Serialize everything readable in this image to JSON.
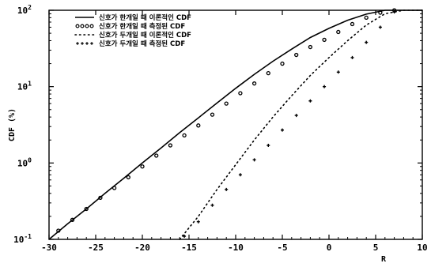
{
  "chart_data": {
    "type": "line",
    "title": "",
    "xlabel": "R",
    "ylabel": "CDF (%)",
    "xlim": [
      -30,
      10
    ],
    "ylim": [
      0.1,
      100
    ],
    "yscale": "log",
    "grid": false,
    "legend_position": "top-left",
    "x_ticks": [
      {
        "value": -30,
        "label": "-30"
      },
      {
        "value": -25,
        "label": "-25"
      },
      {
        "value": -20,
        "label": "-20"
      },
      {
        "value": -15,
        "label": "-15"
      },
      {
        "value": -10,
        "label": "-10"
      },
      {
        "value": -5,
        "label": "-5"
      },
      {
        "value": 0,
        "label": "0"
      },
      {
        "value": 5,
        "label": "5"
      },
      {
        "value": 10,
        "label": "10"
      }
    ],
    "y_ticks": [
      {
        "value": 0.1,
        "base": "10",
        "exp": "-1"
      },
      {
        "value": 1,
        "base": "10",
        "exp": "0"
      },
      {
        "value": 10,
        "base": "10",
        "exp": "1"
      },
      {
        "value": 100,
        "base": "10",
        "exp": "2"
      }
    ],
    "series": [
      {
        "name": "신호가 한개일 때 이론적인 CDF",
        "style": "solid",
        "x": [
          -30,
          -28,
          -26,
          -24,
          -22,
          -20,
          -18,
          -16,
          -14,
          -12,
          -10,
          -8,
          -6,
          -4,
          -2,
          0,
          2,
          4,
          6,
          8,
          10
        ],
        "y": [
          0.1,
          0.16,
          0.25,
          0.4,
          0.63,
          1.0,
          1.57,
          2.5,
          3.9,
          6.1,
          9.5,
          14.5,
          21.5,
          31,
          44,
          58,
          74,
          89,
          100,
          100,
          100
        ]
      },
      {
        "name": "신호가 한개일 때 측정된 CDF",
        "style": "circles",
        "x": [
          -29,
          -27.5,
          -26,
          -24.5,
          -23,
          -21.5,
          -20,
          -18.5,
          -17,
          -15.5,
          -14,
          -12.5,
          -11,
          -9.5,
          -8,
          -6.5,
          -5,
          -3.5,
          -2,
          -0.5,
          1,
          2.5,
          4,
          5.5,
          7
        ],
        "y": [
          0.13,
          0.18,
          0.25,
          0.35,
          0.47,
          0.65,
          0.9,
          1.25,
          1.7,
          2.3,
          3.1,
          4.3,
          6.0,
          8.2,
          11,
          15,
          20,
          26,
          33,
          41,
          52,
          66,
          80,
          93,
          100
        ]
      },
      {
        "name": "신호가 두개일 때 이론적인 CDF",
        "style": "dotted",
        "x": [
          -16,
          -14,
          -12,
          -10,
          -8,
          -6,
          -4,
          -2,
          0,
          2,
          4,
          6,
          8,
          10
        ],
        "y": [
          0.1,
          0.2,
          0.45,
          0.95,
          2.0,
          4.0,
          7.6,
          14,
          24,
          40,
          64,
          90,
          100,
          100
        ]
      },
      {
        "name": "신호가 두개일 때 측정된 CDF",
        "style": "crosses",
        "x": [
          -15.5,
          -14,
          -12.5,
          -11,
          -9.5,
          -8,
          -6.5,
          -5,
          -3.5,
          -2,
          -0.5,
          1,
          2.5,
          4,
          5.5,
          7
        ],
        "y": [
          0.11,
          0.17,
          0.28,
          0.45,
          0.7,
          1.1,
          1.7,
          2.7,
          4.2,
          6.5,
          10,
          15.5,
          24,
          38,
          60,
          95
        ]
      }
    ]
  }
}
